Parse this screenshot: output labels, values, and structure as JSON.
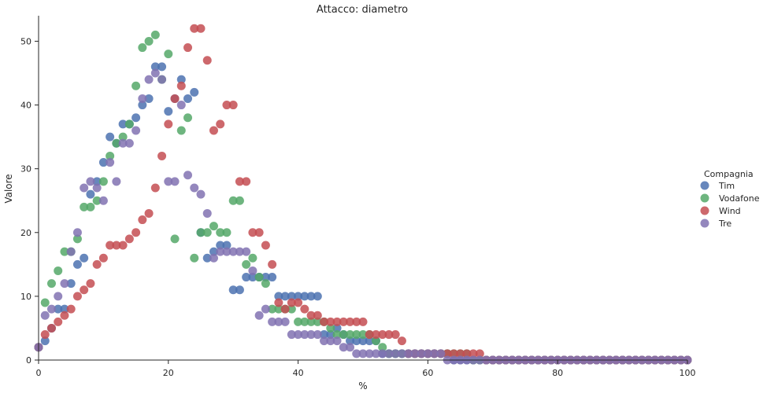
{
  "chart_data": {
    "type": "scatter",
    "title": "Attacco: diametro",
    "xlabel": "%",
    "ylabel": "Valore",
    "xlim": [
      0,
      100
    ],
    "ylim": [
      0,
      54
    ],
    "xticks": [
      "0",
      "20",
      "40",
      "60",
      "80",
      "100"
    ],
    "yticks": [
      "0",
      "10",
      "20",
      "30",
      "40",
      "50"
    ],
    "grid": false,
    "legend_title": "Compagnia",
    "legend_position": "right",
    "series": [
      {
        "name": "Tim",
        "color": "#4c72b0",
        "x": [
          0,
          1,
          2,
          3,
          4,
          5,
          6,
          7,
          8,
          9,
          10,
          11,
          12,
          13,
          14,
          15,
          16,
          17,
          18,
          19,
          20,
          21,
          22,
          23,
          24,
          25,
          26,
          27,
          28,
          29,
          30,
          31,
          32,
          33,
          34,
          35,
          36,
          37,
          38,
          39,
          40,
          41,
          42,
          43,
          44,
          45,
          46,
          47,
          48,
          49,
          50,
          51,
          52,
          53,
          54,
          55,
          56,
          57,
          58,
          59,
          60,
          61,
          62,
          63,
          64,
          65,
          66,
          67,
          68,
          69,
          70,
          71,
          72,
          73,
          74,
          75,
          76,
          77,
          78,
          79,
          80,
          81,
          82,
          83,
          84,
          85,
          86,
          87,
          88,
          89,
          90,
          91,
          92,
          93,
          94,
          95,
          96,
          97,
          98,
          99,
          100
        ],
        "y": [
          2,
          3,
          5,
          8,
          8,
          12,
          15,
          16,
          26,
          28,
          31,
          35,
          34,
          37,
          37,
          38,
          40,
          41,
          46,
          46,
          39,
          41,
          44,
          41,
          42,
          20,
          16,
          17,
          18,
          18,
          11,
          11,
          13,
          13,
          13,
          13,
          13,
          10,
          10,
          10,
          10,
          10,
          10,
          10,
          4,
          4,
          5,
          4,
          3,
          3,
          3,
          3,
          3,
          1,
          1,
          1,
          1,
          1,
          1,
          1,
          1,
          1,
          1,
          1,
          0,
          0,
          0,
          0,
          0,
          0,
          0,
          0,
          0,
          0,
          0,
          0,
          0,
          0,
          0,
          0,
          0,
          0,
          0,
          0,
          0,
          0,
          0,
          0,
          0,
          0,
          0,
          0,
          0,
          0,
          0,
          0,
          0,
          0,
          0,
          0,
          0
        ]
      },
      {
        "name": "Vodafone",
        "color": "#55a868",
        "x": [
          0,
          1,
          2,
          3,
          4,
          5,
          6,
          7,
          8,
          9,
          10,
          11,
          12,
          13,
          14,
          15,
          16,
          17,
          18,
          19,
          20,
          21,
          22,
          23,
          24,
          25,
          26,
          27,
          28,
          29,
          30,
          31,
          32,
          33,
          34,
          35,
          36,
          37,
          38,
          39,
          40,
          41,
          42,
          43,
          44,
          45,
          46,
          47,
          48,
          49,
          50,
          51,
          52,
          53,
          54,
          55,
          56,
          57,
          58,
          59,
          60,
          61,
          62,
          63,
          64,
          65,
          66,
          67,
          68,
          69,
          70,
          71,
          72,
          73,
          74,
          75,
          76,
          77,
          78,
          79,
          80,
          81,
          82,
          83,
          84,
          85,
          86,
          87,
          88,
          89,
          90,
          91,
          92,
          93,
          94,
          95,
          96,
          97,
          98,
          99,
          100
        ],
        "y": [
          2,
          9,
          12,
          14,
          17,
          17,
          19,
          24,
          24,
          25,
          28,
          32,
          34,
          35,
          37,
          43,
          49,
          50,
          51,
          44,
          48,
          19,
          36,
          38,
          16,
          20,
          20,
          21,
          20,
          20,
          25,
          25,
          15,
          16,
          13,
          12,
          8,
          8,
          8,
          8,
          6,
          6,
          6,
          6,
          6,
          5,
          4,
          4,
          4,
          4,
          4,
          4,
          3,
          2,
          1,
          1,
          1,
          1,
          1,
          1,
          1,
          1,
          1,
          1,
          1,
          1,
          1,
          0,
          0,
          0,
          0,
          0,
          0,
          0,
          0,
          0,
          0,
          0,
          0,
          0,
          0,
          0,
          0,
          0,
          0,
          0,
          0,
          0,
          0,
          0,
          0,
          0,
          0,
          0,
          0,
          0,
          0,
          0,
          0,
          0,
          0
        ]
      },
      {
        "name": "Wind",
        "color": "#c44e52",
        "x": [
          0,
          1,
          2,
          3,
          4,
          5,
          6,
          7,
          8,
          9,
          10,
          11,
          12,
          13,
          14,
          15,
          16,
          17,
          18,
          19,
          20,
          21,
          22,
          23,
          24,
          25,
          26,
          27,
          28,
          29,
          30,
          31,
          32,
          33,
          34,
          35,
          36,
          37,
          38,
          39,
          40,
          41,
          42,
          43,
          44,
          45,
          46,
          47,
          48,
          49,
          50,
          51,
          52,
          53,
          54,
          55,
          56,
          57,
          58,
          59,
          60,
          61,
          62,
          63,
          64,
          65,
          66,
          67,
          68,
          69,
          70,
          71,
          72,
          73,
          74,
          75,
          76,
          77,
          78,
          79,
          80,
          81,
          82,
          83,
          84,
          85,
          86,
          87,
          88,
          89,
          90,
          91,
          92,
          93,
          94,
          95,
          96,
          97,
          98,
          99,
          100
        ],
        "y": [
          2,
          4,
          5,
          6,
          7,
          8,
          10,
          11,
          12,
          15,
          16,
          18,
          18,
          18,
          19,
          20,
          22,
          23,
          27,
          32,
          37,
          41,
          43,
          49,
          52,
          52,
          47,
          36,
          37,
          40,
          40,
          28,
          28,
          20,
          20,
          18,
          15,
          9,
          8,
          9,
          9,
          8,
          7,
          7,
          6,
          6,
          6,
          6,
          6,
          6,
          6,
          4,
          4,
          4,
          4,
          4,
          3,
          1,
          1,
          1,
          1,
          1,
          1,
          1,
          1,
          1,
          1,
          1,
          1,
          0,
          0,
          0,
          0,
          0,
          0,
          0,
          0,
          0,
          0,
          0,
          0,
          0,
          0,
          0,
          0,
          0,
          0,
          0,
          0,
          0,
          0,
          0,
          0,
          0,
          0,
          0,
          0,
          0,
          0,
          0,
          0
        ]
      },
      {
        "name": "Tre",
        "color": "#8172b2",
        "x": [
          0,
          1,
          2,
          3,
          4,
          5,
          6,
          7,
          8,
          9,
          10,
          11,
          12,
          13,
          14,
          15,
          16,
          17,
          18,
          19,
          20,
          21,
          22,
          23,
          24,
          25,
          26,
          27,
          28,
          29,
          30,
          31,
          32,
          33,
          34,
          35,
          36,
          37,
          38,
          39,
          40,
          41,
          42,
          43,
          44,
          45,
          46,
          47,
          48,
          49,
          50,
          51,
          52,
          53,
          54,
          55,
          56,
          57,
          58,
          59,
          60,
          61,
          62,
          63,
          64,
          65,
          66,
          67,
          68,
          69,
          70,
          71,
          72,
          73,
          74,
          75,
          76,
          77,
          78,
          79,
          80,
          81,
          82,
          83,
          84,
          85,
          86,
          87,
          88,
          89,
          90,
          91,
          92,
          93,
          94,
          95,
          96,
          97,
          98,
          99,
          100
        ],
        "y": [
          2,
          7,
          8,
          10,
          12,
          17,
          20,
          27,
          28,
          27,
          25,
          31,
          28,
          34,
          34,
          36,
          41,
          44,
          45,
          44,
          28,
          28,
          40,
          29,
          27,
          26,
          23,
          16,
          17,
          17,
          17,
          17,
          17,
          14,
          7,
          8,
          6,
          6,
          6,
          4,
          4,
          4,
          4,
          4,
          3,
          3,
          3,
          2,
          2,
          1,
          1,
          1,
          1,
          1,
          1,
          1,
          1,
          1,
          1,
          1,
          1,
          1,
          1,
          0,
          0,
          0,
          0,
          0,
          0,
          0,
          0,
          0,
          0,
          0,
          0,
          0,
          0,
          0,
          0,
          0,
          0,
          0,
          0,
          0,
          0,
          0,
          0,
          0,
          0,
          0,
          0,
          0,
          0,
          0,
          0,
          0,
          0,
          0,
          0,
          0,
          0
        ]
      }
    ]
  }
}
